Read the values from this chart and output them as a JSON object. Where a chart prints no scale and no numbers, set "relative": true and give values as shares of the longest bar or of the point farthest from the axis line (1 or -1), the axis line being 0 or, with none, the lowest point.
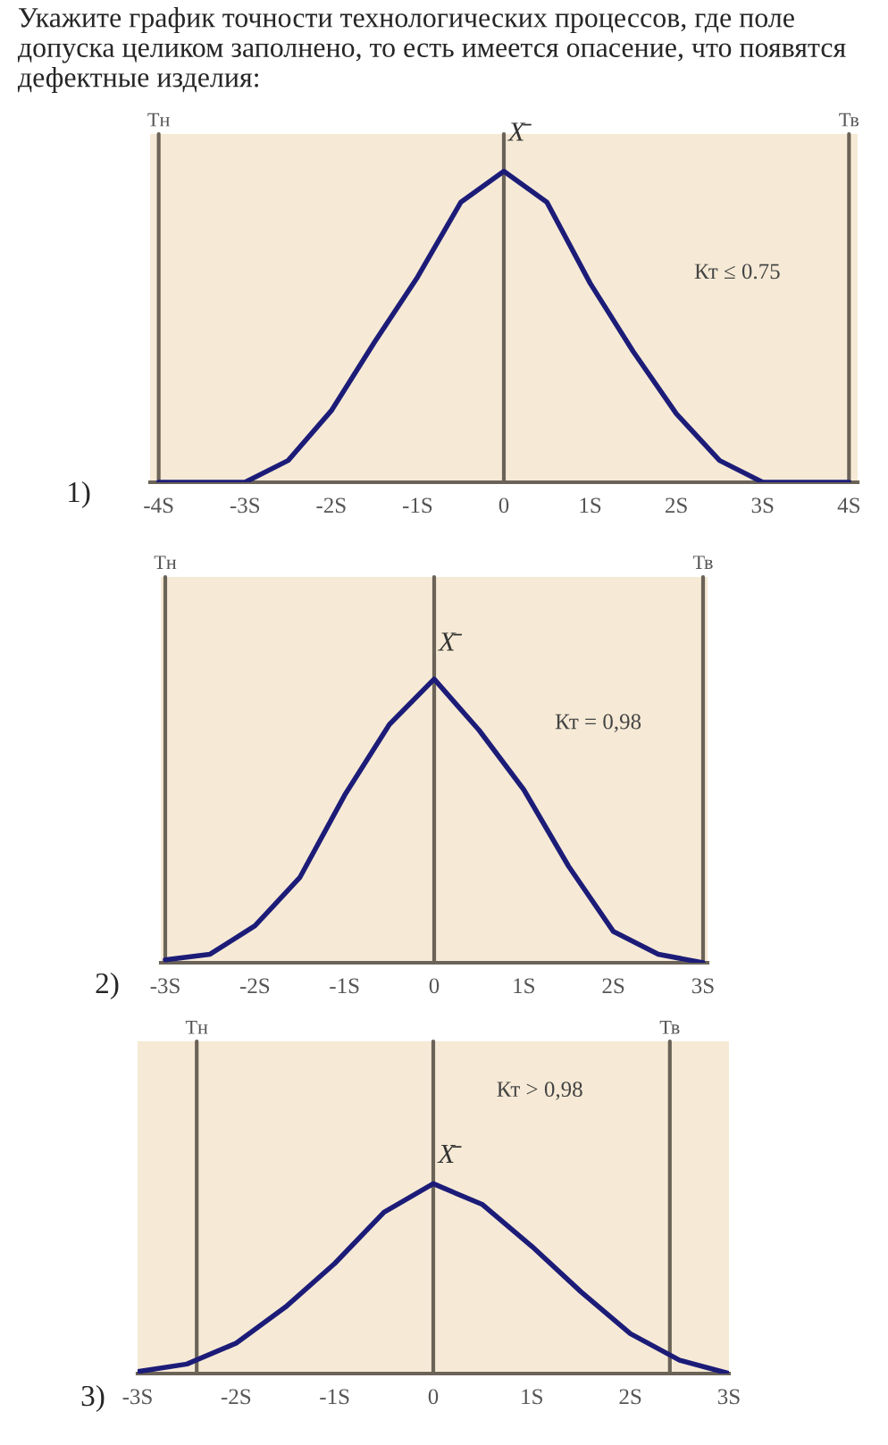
{
  "chart_data": [
    {
      "type": "line",
      "title": "Укажите график точности технологических процессов, где поле допуска целиком заполнено, то есть имеется опасение, что появятся дефектные изделия:",
      "relative": true,
      "xlim": [
        -4.1,
        4.1
      ],
      "xticks": [
        {
          "value": -4,
          "label": "-4S"
        },
        {
          "value": -3,
          "label": "-3S"
        },
        {
          "value": -2,
          "label": "-2S"
        },
        {
          "value": -1,
          "label": "-1S"
        },
        {
          "value": 0,
          "label": "0"
        },
        {
          "value": 1,
          "label": "1S"
        },
        {
          "value": 2,
          "label": "2S"
        },
        {
          "value": 3,
          "label": "3S"
        },
        {
          "value": 4,
          "label": "4S"
        }
      ],
      "series": [
        {
          "color": "#1c1c78",
          "x": [
            -4,
            -3,
            -2.5,
            -2,
            -1.5,
            -1,
            -0.5,
            0,
            0.5,
            1,
            1.5,
            2,
            2.5,
            3,
            4
          ],
          "values": [
            0,
            0,
            0.07,
            0.23,
            0.45,
            0.66,
            0.9,
            1,
            0.9,
            0.64,
            0.42,
            0.22,
            0.07,
            0,
            0
          ]
        }
      ],
      "ref_lines": [
        {
          "axis": "x",
          "value": -4,
          "label": "Тн",
          "color": "#6b6358"
        },
        {
          "axis": "x",
          "value": 4,
          "label": "Тв",
          "color": "#6b6358"
        },
        {
          "axis": "x",
          "value": 0,
          "label": "X̄",
          "color": "#6b6358"
        }
      ],
      "annotations": [
        "Кт ≤ 0.75",
        "1)"
      ],
      "grid": false,
      "legend": false,
      "line_style": "solid",
      "marker": "none"
    },
    {
      "type": "line",
      "relative": true,
      "xlim": [
        -3.05,
        3.05
      ],
      "xticks": [
        {
          "value": -3,
          "label": "-3S"
        },
        {
          "value": -2,
          "label": "-2S"
        },
        {
          "value": -1,
          "label": "-1S"
        },
        {
          "value": 0,
          "label": "0"
        },
        {
          "value": 1,
          "label": "1S"
        },
        {
          "value": 2,
          "label": "2S"
        },
        {
          "value": 3,
          "label": "3S"
        }
      ],
      "series": [
        {
          "color": "#1c1c78",
          "x": [
            -3,
            -2.5,
            -2,
            -1.5,
            -1,
            -0.5,
            0,
            0.5,
            1,
            1.5,
            2,
            2.5,
            3
          ],
          "values": [
            0.01,
            0.03,
            0.13,
            0.3,
            0.59,
            0.84,
            1,
            0.82,
            0.61,
            0.34,
            0.11,
            0.03,
            0
          ]
        }
      ],
      "ref_lines": [
        {
          "axis": "x",
          "value": -3,
          "label": "Тн",
          "color": "#6b6358"
        },
        {
          "axis": "x",
          "value": 3,
          "label": "Тв",
          "color": "#6b6358"
        },
        {
          "axis": "x",
          "value": 0,
          "label": "X̄",
          "color": "#6b6358"
        }
      ],
      "annotations": [
        "Кт = 0,98",
        "2)"
      ],
      "grid": false,
      "legend": false,
      "line_style": "solid",
      "marker": "none"
    },
    {
      "type": "line",
      "relative": true,
      "xlim": [
        -3,
        3
      ],
      "xticks": [
        {
          "value": -3,
          "label": "-3S"
        },
        {
          "value": -2,
          "label": "-2S"
        },
        {
          "value": -1,
          "label": "-1S"
        },
        {
          "value": 0,
          "label": "0"
        },
        {
          "value": 1,
          "label": "1S"
        },
        {
          "value": 2,
          "label": "2S"
        },
        {
          "value": 3,
          "label": "3S"
        }
      ],
      "series": [
        {
          "color": "#1c1c78",
          "x": [
            -3,
            -2.5,
            -2,
            -1.5,
            -1,
            -0.5,
            0,
            0.5,
            1,
            1.5,
            2,
            2.5,
            3
          ],
          "values": [
            0.01,
            0.05,
            0.16,
            0.35,
            0.58,
            0.85,
            1,
            0.89,
            0.67,
            0.43,
            0.21,
            0.07,
            0
          ]
        }
      ],
      "ref_lines": [
        {
          "axis": "x",
          "value": -2.4,
          "label": "Тн",
          "color": "#6b6358"
        },
        {
          "axis": "x",
          "value": 2.4,
          "label": "Тв",
          "color": "#6b6358"
        },
        {
          "axis": "x",
          "value": 0,
          "label": "X̄",
          "color": "#6b6358"
        }
      ],
      "annotations": [
        "Кт > 0,98",
        "3)"
      ],
      "grid": false,
      "legend": false,
      "line_style": "solid",
      "marker": "none"
    }
  ]
}
